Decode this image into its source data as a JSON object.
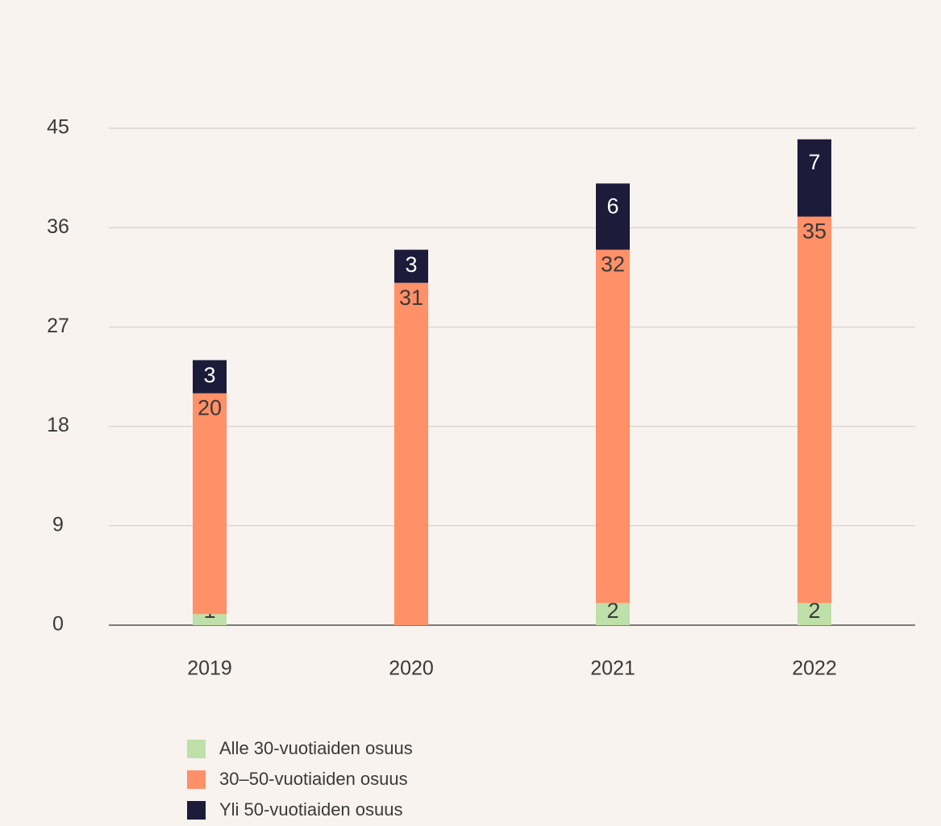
{
  "chart_data": {
    "type": "stacked_bar",
    "categories": [
      "2019",
      "2020",
      "2021",
      "2022"
    ],
    "series": [
      {
        "name": "Alle 30-vuotiaiden osuus",
        "color": "#bfe0a8",
        "values": [
          1,
          null,
          2,
          2
        ]
      },
      {
        "name": "30–50-vuotiaiden osuus",
        "color": "#ff9068",
        "values": [
          20,
          31,
          32,
          35
        ]
      },
      {
        "name": "Yli 50-vuotiaiden osuus",
        "color": "#1c1b3a",
        "values": [
          3,
          3,
          6,
          7
        ]
      }
    ],
    "ylim": [
      0,
      45
    ],
    "yticks": [
      0,
      9,
      18,
      27,
      36,
      45
    ],
    "grid": true
  }
}
